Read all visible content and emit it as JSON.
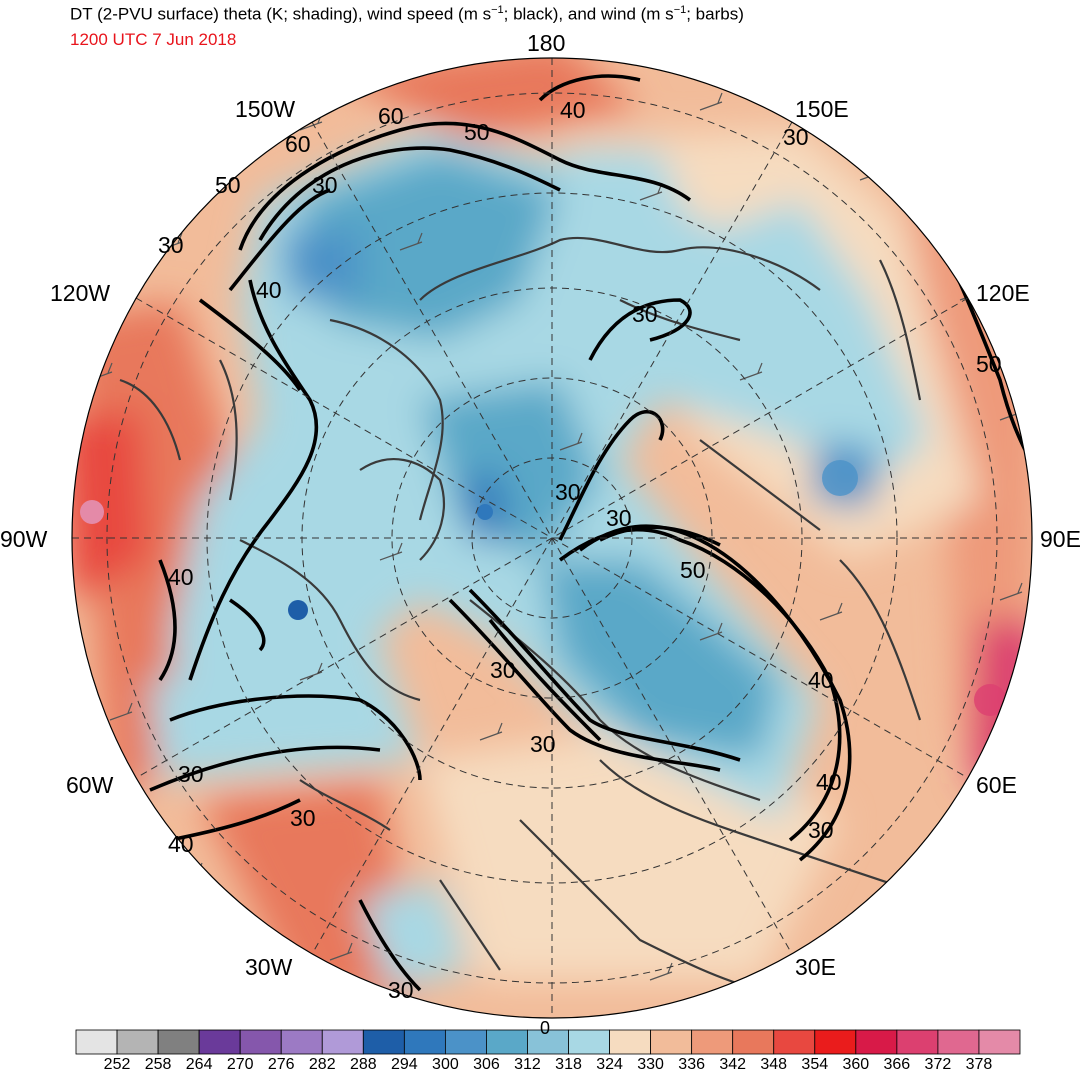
{
  "title": {
    "part1": "DT (2-PVU surface) theta (K; shading), wind speed (m s",
    "sup1": "−1",
    "part2": "; black), and wind (m s",
    "sup2": "−1",
    "part3": "; barbs)"
  },
  "valid_time": "1200 UTC 7 Jun 2018",
  "colors": {
    "time_label": "#e8141c",
    "ocean_blue": "#a8d8e0",
    "contour": "#000000",
    "grid": "#333333",
    "coast": "#3a3a3a"
  },
  "longitude_labels": {
    "l180": "180",
    "l150e": "150E",
    "l120e": "120E",
    "l90e": "90E",
    "l60e": "60E",
    "l30e": "30E",
    "l0": "0",
    "l30w": "30W",
    "l60w": "60W",
    "l90w": "90W",
    "l120w": "120W",
    "l150w": "150W"
  },
  "contour_labels": [
    {
      "text": "60"
    },
    {
      "text": "60"
    },
    {
      "text": "50"
    },
    {
      "text": "40"
    },
    {
      "text": "30"
    },
    {
      "text": "50"
    },
    {
      "text": "30"
    },
    {
      "text": "30"
    },
    {
      "text": "40"
    },
    {
      "text": "30"
    },
    {
      "text": "50"
    },
    {
      "text": "30"
    },
    {
      "text": "30"
    },
    {
      "text": "50"
    },
    {
      "text": "40"
    },
    {
      "text": "40"
    },
    {
      "text": "30"
    },
    {
      "text": "30"
    },
    {
      "text": "30"
    },
    {
      "text": "30"
    },
    {
      "text": "40"
    },
    {
      "text": "40"
    },
    {
      "text": "30"
    },
    {
      "text": "30"
    }
  ],
  "colorbar": {
    "colors": [
      "#e4e4e4",
      "#b4b4b4",
      "#808080",
      "#6a3a9a",
      "#8557ac",
      "#9c7ac4",
      "#b09ad8",
      "#1e5ea8",
      "#2f78bc",
      "#4b92c8",
      "#5aa8c8",
      "#88c2d8",
      "#a8d8e4",
      "#f6dcc0",
      "#f2bc9a",
      "#ee9a7a",
      "#e8785c",
      "#e84840",
      "#ea1c1c",
      "#d81a48",
      "#dc4070",
      "#e06890",
      "#e48aa8"
    ],
    "labels": [
      "252",
      "258",
      "264",
      "270",
      "276",
      "282",
      "288",
      "294",
      "300",
      "306",
      "312",
      "318",
      "324",
      "330",
      "336",
      "342",
      "348",
      "354",
      "360",
      "366",
      "372",
      "378"
    ]
  }
}
